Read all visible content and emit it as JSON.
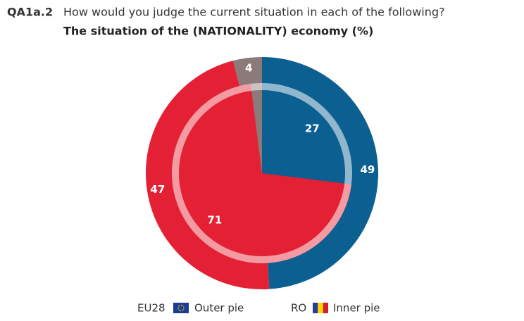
{
  "chart_data": {
    "type": "nested-pie",
    "label": "QA1a.2",
    "title": "How would you judge the current situation in each of the following?",
    "subtitle": "The situation of the (NATIONALITY) economy  (%)",
    "series": [
      {
        "name": "EU28",
        "legend_text": "Outer pie",
        "values": [
          49,
          47,
          4
        ],
        "colors": [
          "#0b5f91",
          "#e42134",
          "#8c7a7a"
        ]
      },
      {
        "name": "RO",
        "legend_text": "Inner pie",
        "values": [
          27,
          71,
          2
        ],
        "colors": [
          "#0b5f91",
          "#e42134",
          "#8c7a7a"
        ]
      }
    ]
  }
}
